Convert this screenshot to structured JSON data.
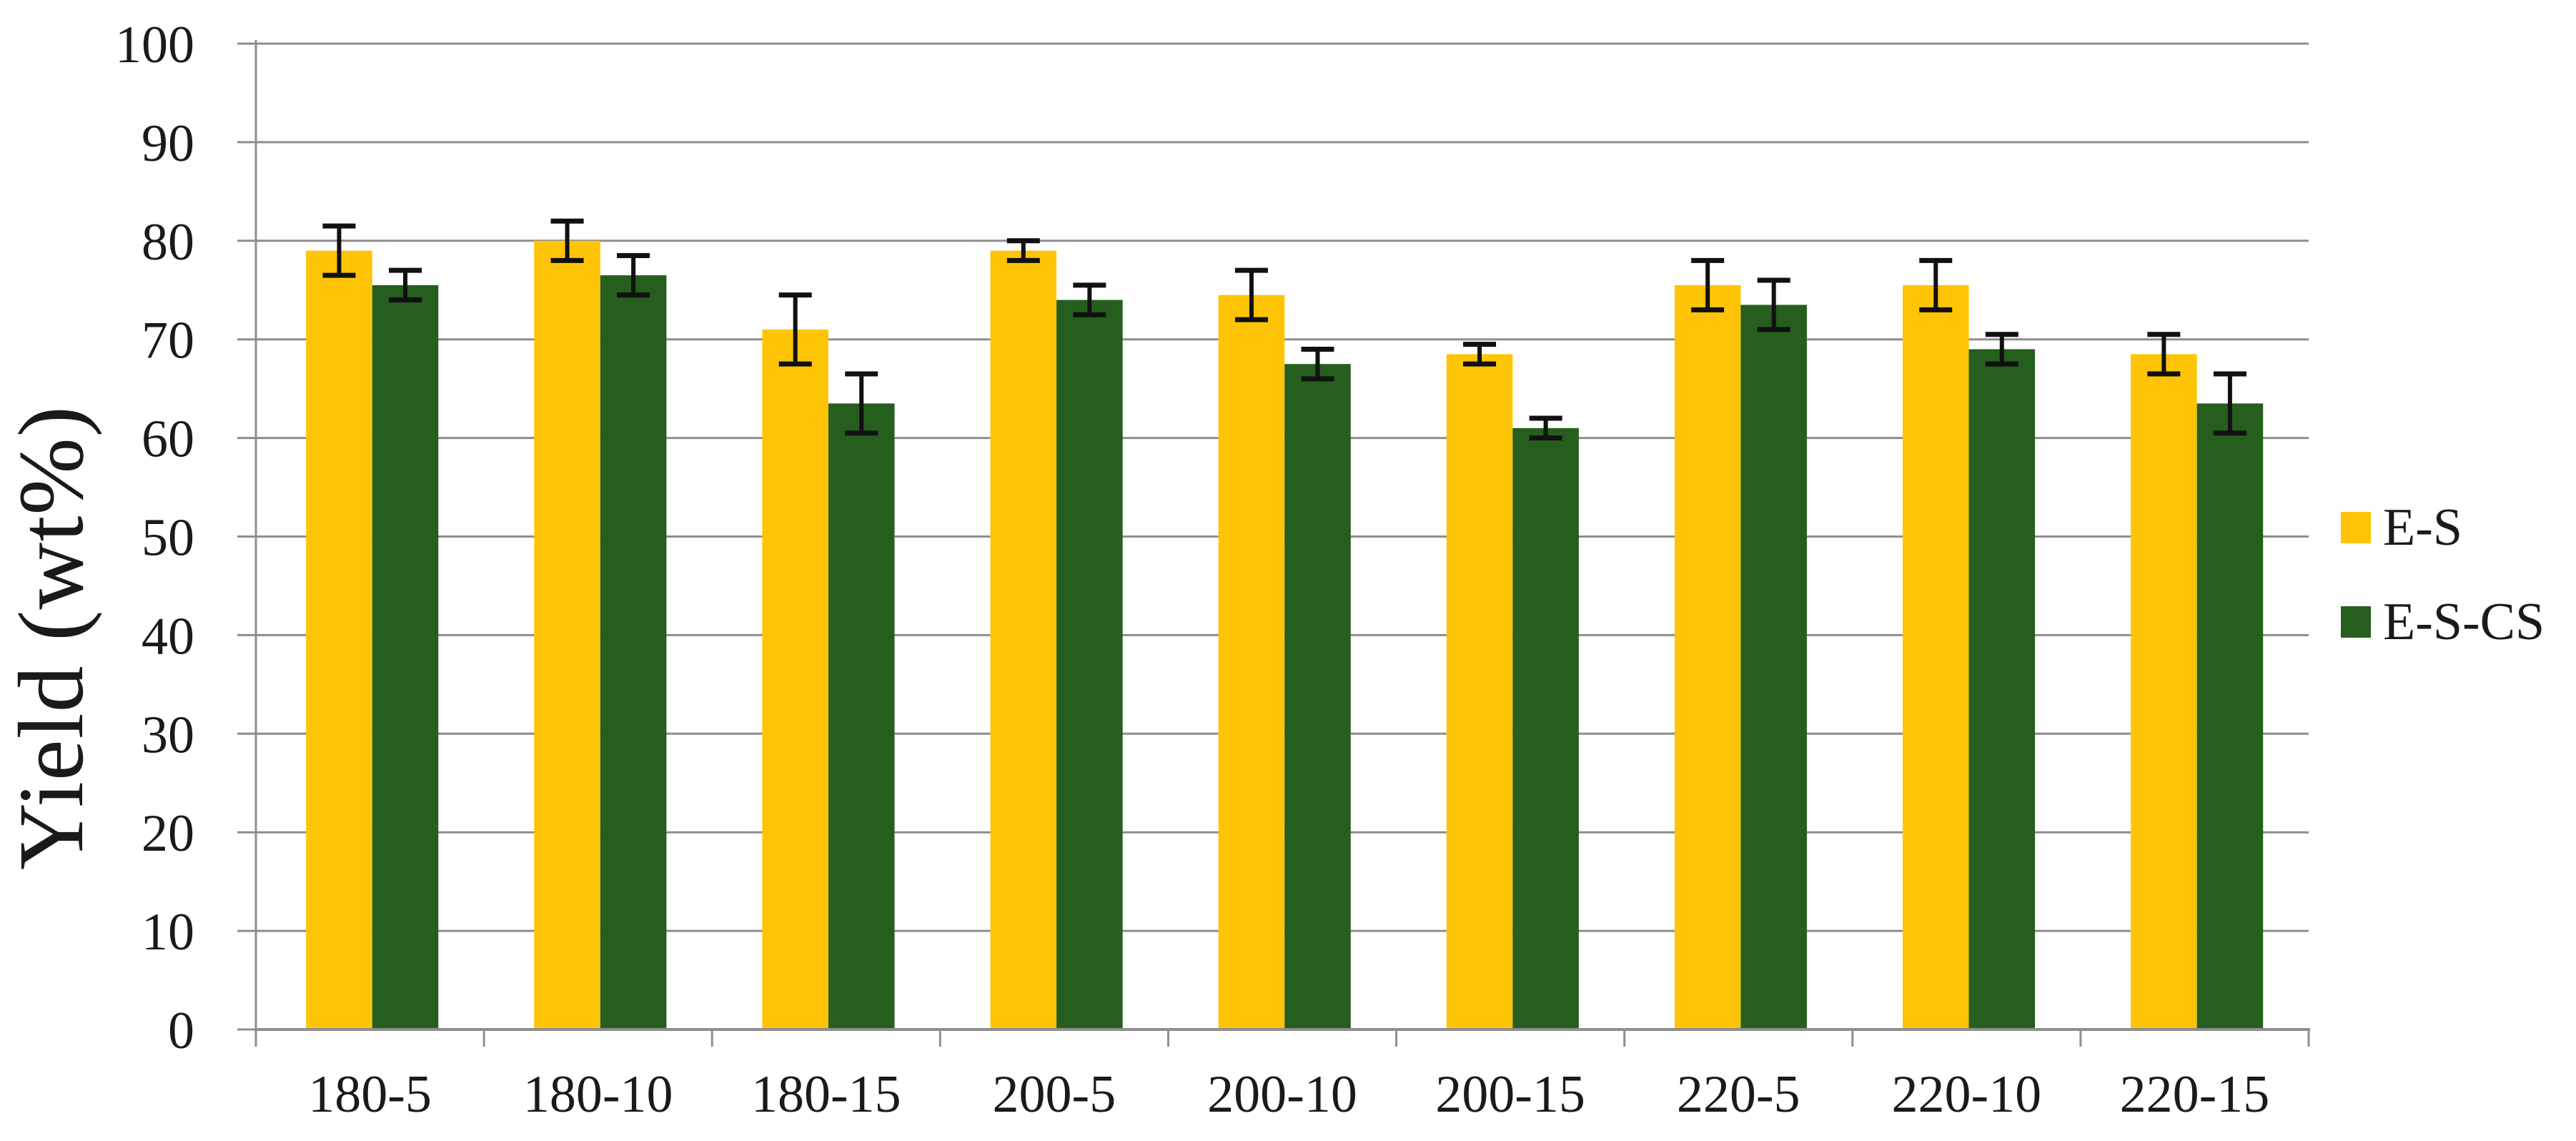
{
  "chart_data": {
    "type": "bar",
    "title": "",
    "xlabel": "",
    "ylabel": "Yield (wt%)",
    "ylim": [
      0,
      100
    ],
    "yticks": [
      0,
      10,
      20,
      30,
      40,
      50,
      60,
      70,
      80,
      90,
      100
    ],
    "grid": "horizontal",
    "legend_position": "right",
    "error_bars": true,
    "categories": [
      "180-5",
      "180-10",
      "180-15",
      "200-5",
      "200-10",
      "200-15",
      "220-5",
      "220-10",
      "220-15"
    ],
    "series": [
      {
        "name": "E-S",
        "color": "#FFC405",
        "values": [
          79,
          80,
          71,
          79,
          74.5,
          68.5,
          75.5,
          75.5,
          68.5
        ],
        "errors": [
          2.5,
          2,
          3.5,
          1,
          2.5,
          1,
          2.5,
          2.5,
          2
        ]
      },
      {
        "name": "E-S-CS",
        "color": "#255E1D",
        "values": [
          75.5,
          76.5,
          63.5,
          74,
          67.5,
          61,
          73.5,
          69,
          63.5
        ],
        "errors": [
          1.5,
          2,
          3,
          1.5,
          1.5,
          1,
          2.5,
          1.5,
          3
        ]
      }
    ],
    "colors": {
      "grid": "#8E8E8E",
      "axis": "#8E8E8E",
      "error_bar": "#111111",
      "text": "#1A1A1A",
      "background": "#FFFFFF"
    }
  }
}
